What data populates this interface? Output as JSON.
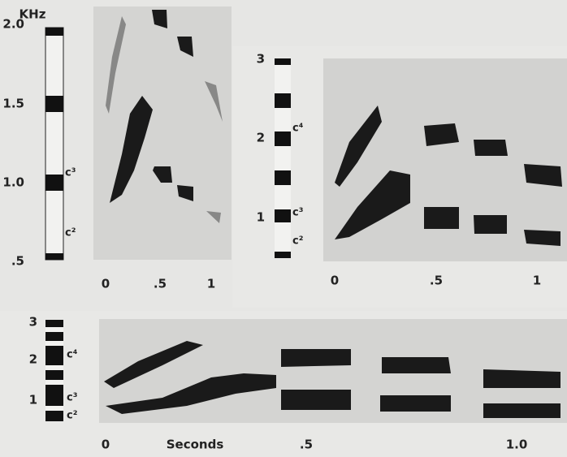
{
  "panels": [
    {
      "frequency_unit": "KHz",
      "frequency_labels": [
        "2.0",
        "1.5",
        "1.0",
        ".5"
      ],
      "note_labels": [
        "c³",
        "c²"
      ],
      "time_labels": [
        "0",
        ".5",
        "1"
      ]
    },
    {
      "frequency_labels": [
        "3",
        "2",
        "1"
      ],
      "note_labels": [
        "c⁴",
        "c³",
        "c²"
      ],
      "time_labels": [
        "0",
        ".5",
        "1"
      ]
    },
    {
      "frequency_labels": [
        "3",
        "2",
        "1"
      ],
      "note_labels": [
        "c⁴",
        "c³",
        "c²"
      ],
      "time_labels": [
        "0",
        ".5",
        "1.0"
      ],
      "time_axis_label": "Seconds"
    }
  ]
}
